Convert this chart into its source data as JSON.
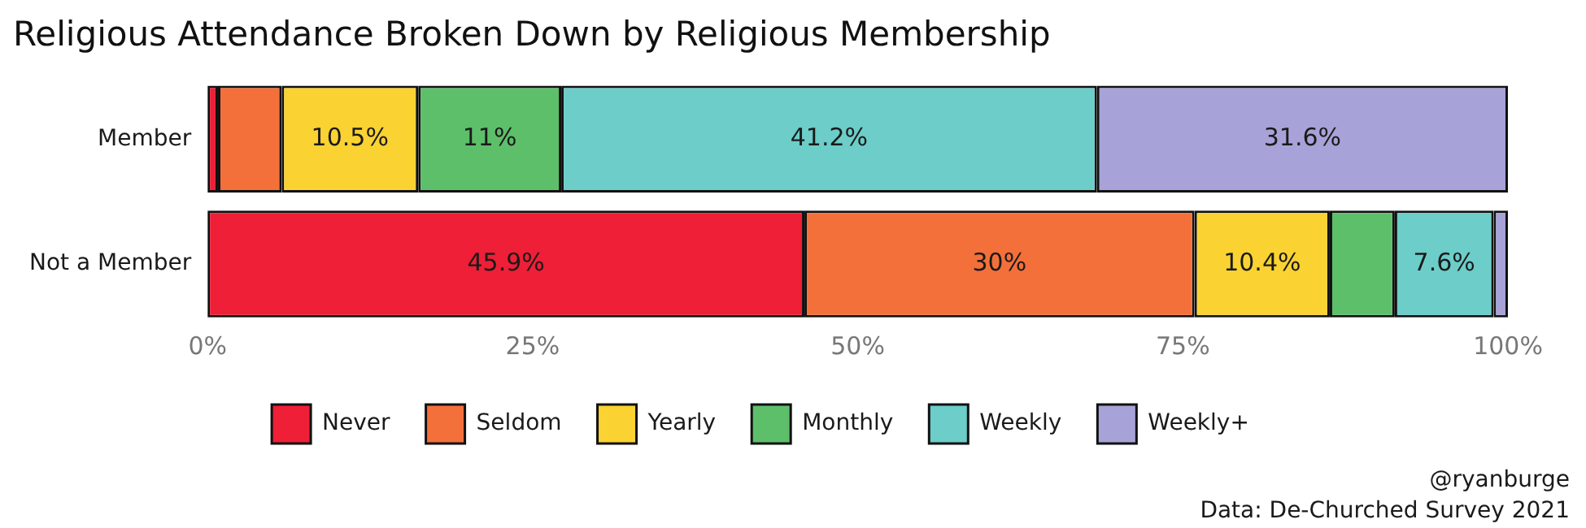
{
  "chart_data": {
    "type": "bar",
    "orientation": "horizontal",
    "stacked": true,
    "title": "Religious Attendance Broken Down by Religious Membership",
    "categories": [
      "Member",
      "Not a Member"
    ],
    "series": [
      {
        "name": "Never",
        "color": "#ee1f36",
        "values": [
          0.8,
          45.9
        ],
        "value_labels": [
          null,
          "45.9%"
        ]
      },
      {
        "name": "Seldom",
        "color": "#f4703a",
        "values": [
          4.9,
          30
        ],
        "value_labels": [
          null,
          "30%"
        ]
      },
      {
        "name": "Yearly",
        "color": "#fad232",
        "values": [
          10.5,
          10.4
        ],
        "value_labels": [
          "10.5%",
          "10.4%"
        ]
      },
      {
        "name": "Monthly",
        "color": "#5dbf6a",
        "values": [
          11,
          5.0
        ],
        "value_labels": [
          "11%",
          null
        ]
      },
      {
        "name": "Weekly",
        "color": "#6ccdc9",
        "values": [
          41.2,
          7.6
        ],
        "value_labels": [
          "41.2%",
          "7.6%"
        ]
      },
      {
        "name": "Weekly+",
        "color": "#a7a3d8",
        "values": [
          31.6,
          1.1
        ],
        "value_labels": [
          "31.6%",
          null
        ]
      }
    ],
    "xlim": [
      0,
      100
    ],
    "xticks": [
      {
        "value": 0,
        "label": "0%"
      },
      {
        "value": 25,
        "label": "25%"
      },
      {
        "value": 50,
        "label": "50%"
      },
      {
        "value": 75,
        "label": "75%"
      },
      {
        "value": 100,
        "label": "100%"
      }
    ],
    "grid": false,
    "legend": "bottom",
    "annotations": [
      "@ryanburge",
      "Data: De-Churched Survey 2021"
    ]
  }
}
